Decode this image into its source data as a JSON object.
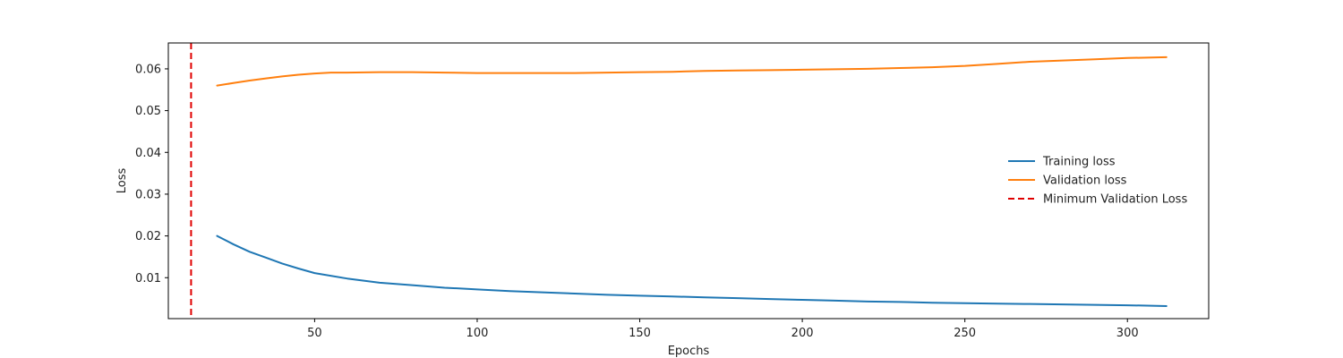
{
  "chart_data": {
    "type": "line",
    "xlabel": "Epochs",
    "ylabel": "Loss",
    "xlim": [
      5,
      325
    ],
    "ylim": [
      0.0002,
      0.0662
    ],
    "xticks": [
      50,
      100,
      150,
      200,
      250,
      300
    ],
    "yticks": [
      0.01,
      0.02,
      0.03,
      0.04,
      0.05,
      0.06
    ],
    "grid": false,
    "legend_position": "center-right",
    "series": [
      {
        "name": "Training loss",
        "color": "#1f77b4",
        "style": "solid",
        "x": [
          20,
          25,
          30,
          35,
          40,
          45,
          50,
          60,
          70,
          80,
          90,
          100,
          110,
          120,
          130,
          140,
          150,
          160,
          170,
          180,
          190,
          200,
          210,
          220,
          230,
          240,
          250,
          260,
          270,
          280,
          290,
          300,
          312
        ],
        "y": [
          0.02,
          0.018,
          0.0162,
          0.0148,
          0.0134,
          0.0122,
          0.0111,
          0.0098,
          0.0088,
          0.0082,
          0.0076,
          0.0072,
          0.0068,
          0.0065,
          0.0062,
          0.0059,
          0.0057,
          0.0055,
          0.0053,
          0.0051,
          0.0049,
          0.0047,
          0.0045,
          0.0043,
          0.0042,
          0.004,
          0.0039,
          0.0038,
          0.0037,
          0.0036,
          0.0035,
          0.0034,
          0.0032
        ]
      },
      {
        "name": "Validation loss",
        "color": "#ff7f0e",
        "style": "solid",
        "x": [
          20,
          25,
          30,
          35,
          40,
          45,
          50,
          55,
          60,
          70,
          80,
          90,
          100,
          110,
          120,
          130,
          140,
          150,
          160,
          170,
          180,
          190,
          200,
          210,
          220,
          230,
          240,
          250,
          260,
          270,
          280,
          290,
          300,
          312
        ],
        "y": [
          0.056,
          0.0566,
          0.0572,
          0.0577,
          0.0582,
          0.0586,
          0.0589,
          0.0591,
          0.0591,
          0.0592,
          0.0592,
          0.0591,
          0.059,
          0.059,
          0.059,
          0.059,
          0.0591,
          0.0592,
          0.0593,
          0.0595,
          0.0596,
          0.0597,
          0.0598,
          0.0599,
          0.06,
          0.0602,
          0.0604,
          0.0607,
          0.0612,
          0.0617,
          0.062,
          0.0623,
          0.0626,
          0.0628
        ]
      },
      {
        "name": "Minimum Validation Loss",
        "color": "#e00000",
        "style": "dashed",
        "vline_x": 12
      }
    ]
  }
}
